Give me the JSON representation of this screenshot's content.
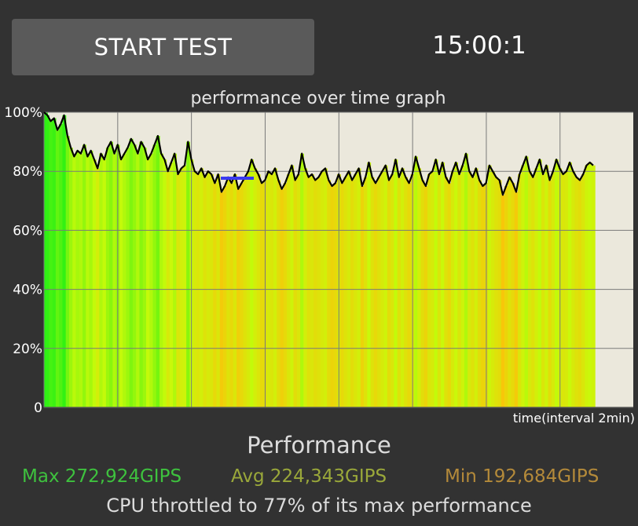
{
  "header": {
    "start_button_label": "START TEST",
    "timer": "15:00:1"
  },
  "graph": {
    "title": "performance over time graph",
    "y_ticks": [
      "100%",
      "80%",
      "60%",
      "40%",
      "20%",
      "0"
    ],
    "x_label": "time(interval 2min)",
    "background_color": "#ebe8dc",
    "line_color": "#000000",
    "marker_color": "#3a3af0"
  },
  "chart_data": {
    "type": "line",
    "title": "performance over time graph",
    "xlabel": "time(interval 2min)",
    "ylabel": "",
    "ylim": [
      0,
      100
    ],
    "grid": true,
    "series": [
      {
        "values": [
          100,
          99,
          97,
          98,
          94,
          96,
          99,
          92,
          88,
          85,
          87,
          86,
          89,
          85,
          87,
          84,
          81,
          86,
          84,
          88,
          90,
          86,
          89,
          84,
          86,
          88,
          91,
          89,
          86,
          90,
          88,
          84,
          86,
          89,
          92,
          86,
          84,
          80,
          83,
          86,
          79,
          81,
          82,
          90,
          84,
          80,
          79,
          81,
          78,
          80,
          79,
          76,
          79,
          73,
          75,
          78,
          76,
          79,
          74,
          76,
          78,
          80,
          84,
          81,
          79,
          76,
          77,
          80,
          79,
          81,
          77,
          74,
          76,
          79,
          82,
          77,
          79,
          86,
          81,
          78,
          79,
          77,
          78,
          80,
          81,
          77,
          75,
          76,
          79,
          76,
          78,
          80,
          77,
          79,
          81,
          75,
          78,
          83,
          78,
          76,
          78,
          80,
          82,
          77,
          79,
          84,
          78,
          81,
          78,
          76,
          79,
          85,
          81,
          77,
          75,
          79,
          80,
          84,
          79,
          83,
          78,
          76,
          80,
          83,
          79,
          82,
          86,
          80,
          78,
          81,
          77,
          75,
          76,
          82,
          80,
          78,
          77,
          72,
          75,
          78,
          76,
          73,
          79,
          82,
          85,
          80,
          78,
          81,
          84,
          79,
          82,
          77,
          80,
          84,
          81,
          79,
          80,
          83,
          80,
          78,
          77,
          79,
          82,
          83,
          82
        ]
      }
    ]
  },
  "performance": {
    "title": "Performance",
    "max": "Max 272,924GIPS",
    "avg": "Avg 224,343GIPS",
    "min": "Min 192,684GIPS",
    "throttle": "CPU throttled to 77% of its max performance",
    "max_color": "#3ec23e",
    "avg_color": "#9aa83a",
    "min_color": "#b48a3a"
  }
}
